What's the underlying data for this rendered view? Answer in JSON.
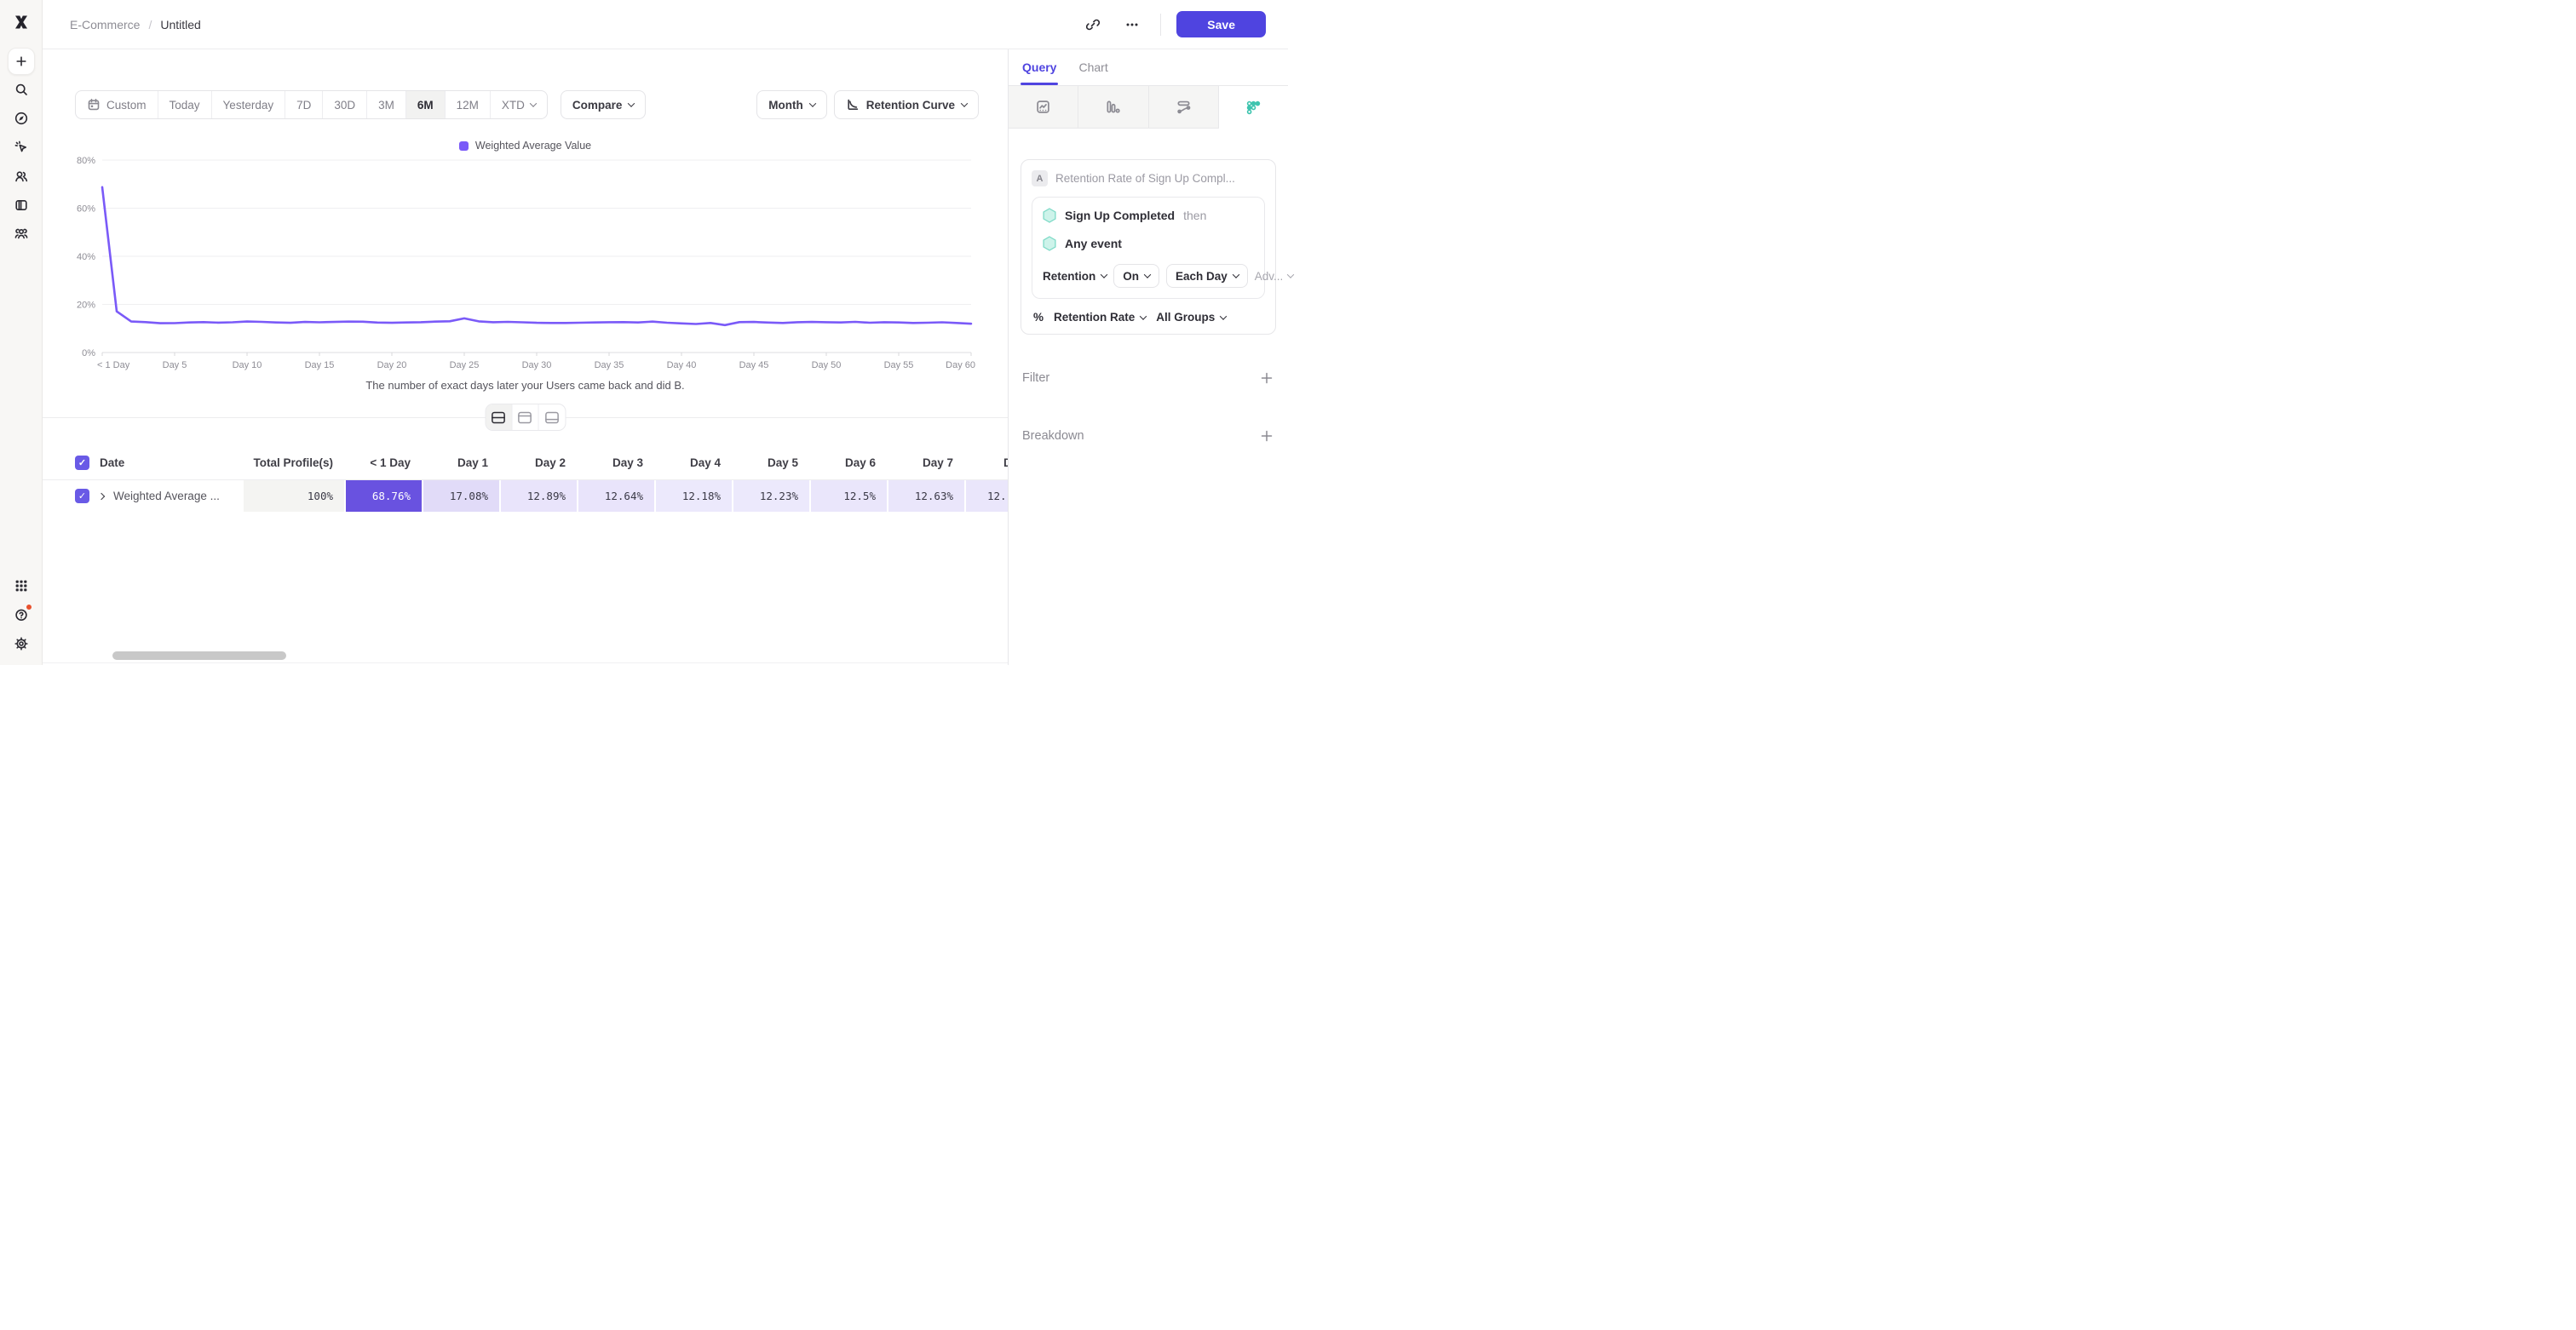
{
  "header": {
    "breadcrumb": {
      "project": "E-Commerce",
      "separator": "/",
      "report": "Untitled"
    },
    "save_label": "Save"
  },
  "toolbar": {
    "ranges": [
      "Custom",
      "Today",
      "Yesterday",
      "7D",
      "30D",
      "3M",
      "6M",
      "12M",
      "XTD"
    ],
    "selected_range": "6M",
    "compare_label": "Compare",
    "granularity_label": "Month",
    "chart_type_label": "Retention Curve"
  },
  "chart_data": {
    "type": "line",
    "title": "",
    "xlabel": "The number of exact days later your Users came back and did B.",
    "ylabel": "",
    "ylim": [
      0,
      80
    ],
    "yticks": [
      "0%",
      "20%",
      "40%",
      "60%",
      "80%"
    ],
    "xticks": [
      "< 1 Day",
      "Day 5",
      "Day 10",
      "Day 15",
      "Day 20",
      "Day 25",
      "Day 30",
      "Day 35",
      "Day 40",
      "Day 45",
      "Day 50",
      "Day 55",
      "Day 60"
    ],
    "x_start_day": 0,
    "x_end_day": 60,
    "grid": "horizontal",
    "legend_position": "top-center",
    "series": [
      {
        "name": "Weighted Average Value",
        "color": "#7a5af8",
        "values": [
          68.76,
          17.08,
          12.89,
          12.64,
          12.18,
          12.23,
          12.5,
          12.63,
          12.42,
          12.55,
          12.9,
          12.75,
          12.5,
          12.35,
          12.7,
          12.55,
          12.7,
          12.85,
          12.8,
          12.45,
          12.35,
          12.5,
          12.6,
          12.85,
          13.0,
          14.2,
          12.95,
          12.6,
          12.75,
          12.55,
          12.35,
          12.3,
          12.3,
          12.4,
          12.5,
          12.6,
          12.65,
          12.5,
          12.85,
          12.4,
          12.1,
          11.85,
          12.3,
          11.4,
          12.65,
          12.7,
          12.45,
          12.3,
          12.6,
          12.7,
          12.6,
          12.5,
          12.75,
          12.4,
          12.6,
          12.5,
          12.3,
          12.4,
          12.55,
          12.3,
          11.95
        ]
      }
    ]
  },
  "view_toggles": [
    {
      "name": "split-view",
      "active": true
    },
    {
      "name": "chart-only-view",
      "active": false
    },
    {
      "name": "table-only-view",
      "active": false
    }
  ],
  "table": {
    "header": [
      "Date",
      "Total Profile(s)",
      "< 1 Day",
      "Day 1",
      "Day 2",
      "Day 3",
      "Day 4",
      "Day 5",
      "Day 6",
      "Day 7",
      "D"
    ],
    "row": {
      "checked": true,
      "label": "Weighted Average ...",
      "values": [
        "100%",
        "68.76%",
        "17.08%",
        "12.89%",
        "12.64%",
        "12.18%",
        "12.23%",
        "12.5%",
        "12.63%",
        "12."
      ]
    },
    "cell_bg": [
      "#f4f4f2",
      "#6952e0",
      "#e1dbf8",
      "#e9e4fb",
      "#e9e4fb",
      "#ece9fc",
      "#ece9fc",
      "#eae6fb",
      "#eae6fb",
      "#eae6fb"
    ],
    "highlight_text_color": "#ffffff",
    "check_glyph": "✓"
  },
  "panel": {
    "tabs": [
      {
        "label": "Query",
        "active": true
      },
      {
        "label": "Chart",
        "active": false
      }
    ],
    "report_types": [
      {
        "name": "insights",
        "icon": "insights-icon",
        "active": false
      },
      {
        "name": "funnels",
        "icon": "funnels-icon",
        "active": false
      },
      {
        "name": "flows",
        "icon": "flows-icon",
        "active": false
      },
      {
        "name": "retention",
        "icon": "retention-icon",
        "active": true
      }
    ],
    "query": {
      "badge": "A",
      "title": "Retention Rate of Sign Up Compl...",
      "first_event": "Sign Up Completed",
      "then_label": "then",
      "second_event": "Any event",
      "retention_label": "Retention",
      "on_label": "On",
      "interval_label": "Each Day",
      "advanced_label": "Adv...",
      "measure_prefix": "%",
      "measure_label": "Retention Rate",
      "groups_label": "All Groups"
    },
    "filter_label": "Filter",
    "breakdown_label": "Breakdown"
  },
  "sidebar": {
    "top_items": [
      "plus",
      "search",
      "compass",
      "events",
      "users",
      "boards",
      "cohorts"
    ],
    "bottom_items": [
      "apps",
      "help",
      "settings"
    ],
    "help_has_badge": true
  },
  "colors": {
    "brand_purple": "#4f44e0",
    "chart_purple": "#7a5af8",
    "cell_purple": "#6952e0",
    "teal": "#3fc4af",
    "hex_fill": "#cdf3ea",
    "hex_stroke": "#7edac7",
    "notification_red": "#e8512d"
  }
}
